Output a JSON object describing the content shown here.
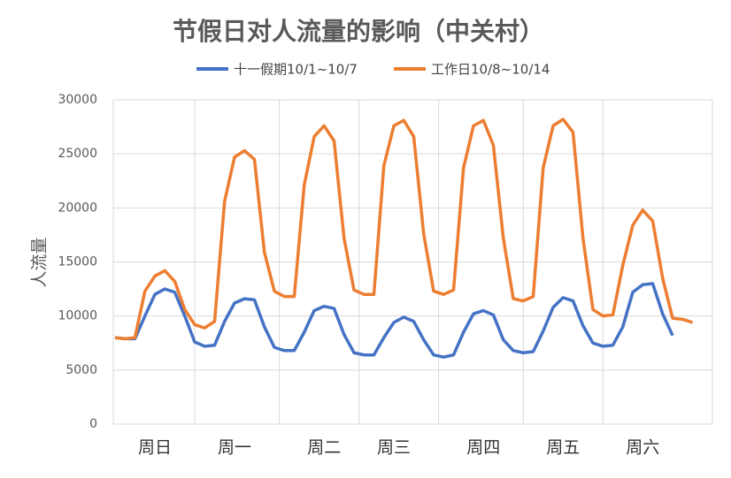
{
  "chart_data": {
    "type": "line",
    "title": "节假日对人流量的影响（中关村）",
    "y_label": "人流量",
    "categories": [
      null,
      null,
      null,
      null,
      "周日",
      null,
      null,
      null,
      null,
      null,
      null,
      null,
      "周一",
      null,
      null,
      null,
      null,
      null,
      null,
      null,
      null,
      "周二",
      null,
      null,
      null,
      null,
      null,
      null,
      "周三",
      null,
      null,
      null,
      null,
      null,
      null,
      null,
      null,
      "周四",
      null,
      null,
      null,
      null,
      null,
      null,
      null,
      "周五",
      null,
      null,
      null,
      null,
      null,
      null,
      null,
      "周六",
      null,
      null,
      null,
      null,
      null
    ],
    "series": [
      {
        "name": "十一假期10/1~10/7",
        "color": "#4472c4",
        "values": [
          8000,
          7900,
          7900,
          10000,
          12000,
          12500,
          12200,
          10000,
          7600,
          7200,
          7300,
          9500,
          11200,
          11600,
          11500,
          9000,
          7100,
          6800,
          6800,
          8500,
          10500,
          10900,
          10700,
          8300,
          6600,
          6400,
          6400,
          8000,
          9400,
          9900,
          9500,
          7800,
          6400,
          6200,
          6400,
          8500,
          10200,
          10500,
          10100,
          7800,
          6800,
          6600,
          6700,
          8600,
          10800,
          11700,
          11400,
          9100,
          7500,
          7200,
          7300,
          9000,
          12200,
          12900,
          13000,
          10200,
          8200,
          null,
          null
        ]
      },
      {
        "name": "工作日10/8~10/14",
        "color": "#ed7d31",
        "values": [
          8000,
          7900,
          8000,
          12300,
          13700,
          14200,
          13200,
          10600,
          9200,
          8900,
          9500,
          20600,
          24700,
          25300,
          24500,
          15900,
          12300,
          11800,
          11800,
          22100,
          26600,
          27600,
          26200,
          17200,
          12400,
          12000,
          12000,
          23900,
          27600,
          28100,
          26600,
          17600,
          12300,
          12000,
          12400,
          23700,
          27600,
          28100,
          25800,
          17200,
          11600,
          11400,
          11800,
          23700,
          27600,
          28200,
          27000,
          17200,
          10600,
          10000,
          10100,
          14700,
          18400,
          19800,
          18800,
          13500,
          9800,
          9700,
          9400
        ]
      }
    ],
    "ylim": [
      0,
      30000
    ],
    "yticks": [
      0,
      5000,
      10000,
      15000,
      20000,
      25000,
      30000
    ],
    "grid": true,
    "legend": "top"
  }
}
